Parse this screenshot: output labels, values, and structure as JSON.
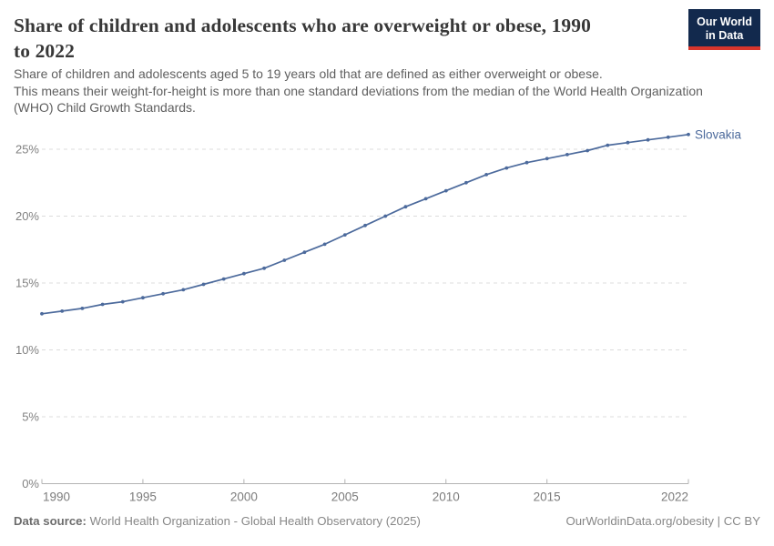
{
  "header": {
    "title": "Share of children and adolescents who are overweight or obese, 1990 to 2022",
    "title_lines": [
      "Share of children and adolescents who are overweight or obese, 1990",
      "to 2022"
    ],
    "subtitle_lines": [
      "Share of children and adolescents aged 5 to 19 years old that are defined as either overweight or obese.",
      "This means their weight-for-height is more than one standard deviations from the median of the World Health Organization",
      "(WHO) Child Growth Standards."
    ],
    "logo": {
      "line1": "Our World",
      "line2": "in Data"
    }
  },
  "chart_data": {
    "type": "line",
    "title": "Share of children and adolescents who are overweight or obese, 1990 to 2022",
    "x": [
      1990,
      1991,
      1992,
      1993,
      1994,
      1995,
      1996,
      1997,
      1998,
      1999,
      2000,
      2001,
      2002,
      2003,
      2004,
      2005,
      2006,
      2007,
      2008,
      2009,
      2010,
      2011,
      2012,
      2013,
      2014,
      2015,
      2016,
      2017,
      2018,
      2019,
      2020,
      2021,
      2022
    ],
    "series": [
      {
        "name": "Slovakia",
        "color": "#4c6a9c",
        "values": [
          12.7,
          12.9,
          13.1,
          13.4,
          13.6,
          13.9,
          14.2,
          14.5,
          14.9,
          15.3,
          15.7,
          16.1,
          16.7,
          17.3,
          17.9,
          18.6,
          19.3,
          20.0,
          20.7,
          21.3,
          21.9,
          22.5,
          23.1,
          23.6,
          24.0,
          24.3,
          24.6,
          24.9,
          25.3,
          25.5,
          25.7,
          25.9,
          26.1
        ]
      }
    ],
    "end_label": "Slovakia",
    "ylabel": "",
    "xlabel": "",
    "ylim": [
      0,
      25
    ],
    "yticks": [
      0,
      5,
      10,
      15,
      20,
      25
    ],
    "ytick_suffix": "%",
    "xticks": [
      1990,
      1995,
      2000,
      2005,
      2010,
      2015,
      2022
    ],
    "grid": "horizontal-dashed",
    "legend_position": "end-of-line"
  },
  "footer": {
    "datasource_label": "Data source:",
    "datasource_value": "World Health Organization - Global Health Observatory (2025)",
    "attribution": "OurWorldinData.org/obesity | CC BY"
  },
  "colors": {
    "line": "#4c6a9c",
    "grid": "#dcdcdc",
    "axis": "#b3b3b3",
    "tick_label": "#818181",
    "logo_bg": "#12294d",
    "logo_red": "#d7352c",
    "title_text": "#383838",
    "subtitle_text": "#5f5f5f",
    "footer_text": "#878787"
  }
}
